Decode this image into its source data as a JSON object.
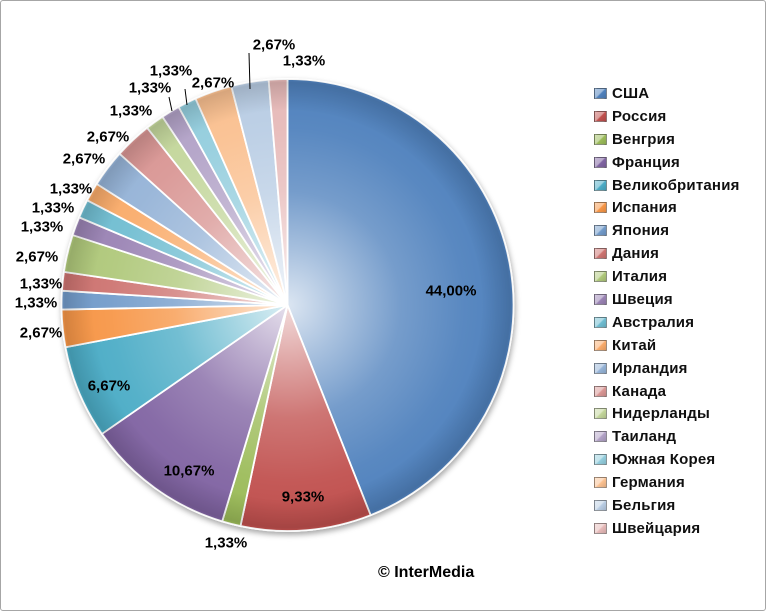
{
  "frame": {
    "background": "#FFFFFF",
    "border_color": "#A6A6A6"
  },
  "credit": "© InterMedia",
  "chart_data": {
    "type": "pie",
    "title": "",
    "legend_position": "right",
    "direction": "clockwise",
    "start_angle_deg": 0,
    "value_unit": "%",
    "value_format": "comma-decimal-2dp",
    "categories": [
      "США",
      "Россия",
      "Венгрия",
      "Франция",
      "Великобритания",
      "Испания",
      "Япония",
      "Дания",
      "Италия",
      "Швеция",
      "Австралия",
      "Китай",
      "Ирландия",
      "Канада",
      "Нидерланды",
      "Таиланд",
      "Южная Корея",
      "Германия",
      "Бельгия",
      "Швейцария"
    ],
    "values": [
      44.0,
      9.33,
      1.33,
      10.67,
      6.67,
      2.67,
      1.33,
      1.33,
      2.67,
      1.33,
      1.33,
      1.33,
      2.67,
      2.67,
      1.33,
      1.33,
      1.33,
      2.67,
      2.67,
      1.33
    ],
    "labels": [
      "44,00%",
      "9,33%",
      "1,33%",
      "10,67%",
      "6,67%",
      "2,67%",
      "1,33%",
      "1,33%",
      "2,67%",
      "1,33%",
      "1,33%",
      "1,33%",
      "2,67%",
      "2,67%",
      "1,33%",
      "1,33%",
      "1,33%",
      "2,67%",
      "2,67%",
      "1,33%"
    ],
    "colors": [
      "#4F81BD",
      "#C0504D",
      "#9BBB59",
      "#8064A2",
      "#4BACC6",
      "#F79646",
      "#729BCA",
      "#CD7370",
      "#AFC87A",
      "#9A83B4",
      "#6FBDD1",
      "#F9AB6B",
      "#95B3D7",
      "#D99694",
      "#C3D69B",
      "#B2A2C7",
      "#93CDDD",
      "#FAC090",
      "#B9CDE4",
      "#E6B9B8"
    ]
  }
}
